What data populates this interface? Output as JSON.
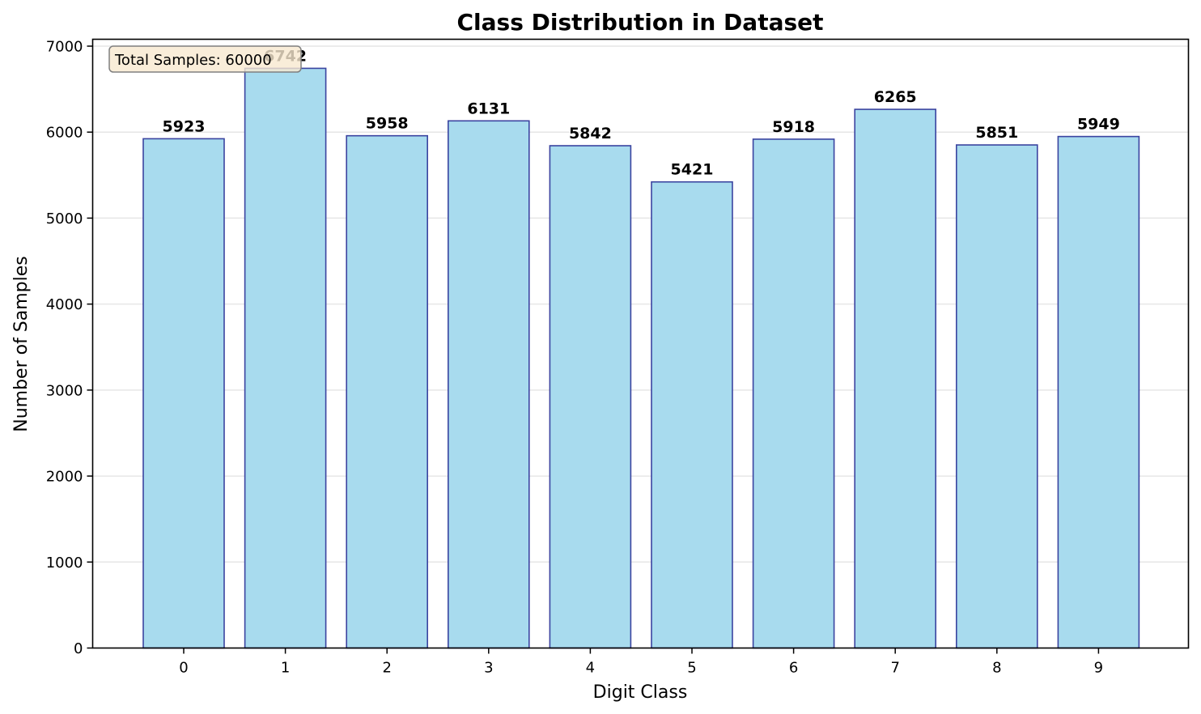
{
  "chart_data": {
    "type": "bar",
    "title": "Class Distribution in Dataset",
    "xlabel": "Digit Class",
    "ylabel": "Number of Samples",
    "categories": [
      "0",
      "1",
      "2",
      "3",
      "4",
      "5",
      "6",
      "7",
      "8",
      "9"
    ],
    "values": [
      5923,
      6742,
      5958,
      6131,
      5842,
      5421,
      5918,
      6265,
      5851,
      5949
    ],
    "data_labels": [
      "5923",
      "6742",
      "5958",
      "6131",
      "5842",
      "5421",
      "5918",
      "6265",
      "5851",
      "5949"
    ],
    "ylim": [
      0,
      7080
    ],
    "yticks": [
      0,
      1000,
      2000,
      3000,
      4000,
      5000,
      6000,
      7000
    ],
    "ytick_labels": [
      "0",
      "1000",
      "2000",
      "3000",
      "4000",
      "5000",
      "6000",
      "7000"
    ],
    "grid": "y-axis, light",
    "annotation": "Total Samples: 60000",
    "annotation_position": "top-left",
    "colors": {
      "bar_fill": "#a8dbee",
      "bar_edge": "#3b44a0",
      "grid": "#e6e6e6",
      "annotation_fill": "#f8e8d0",
      "annotation_edge": "#888888"
    }
  }
}
